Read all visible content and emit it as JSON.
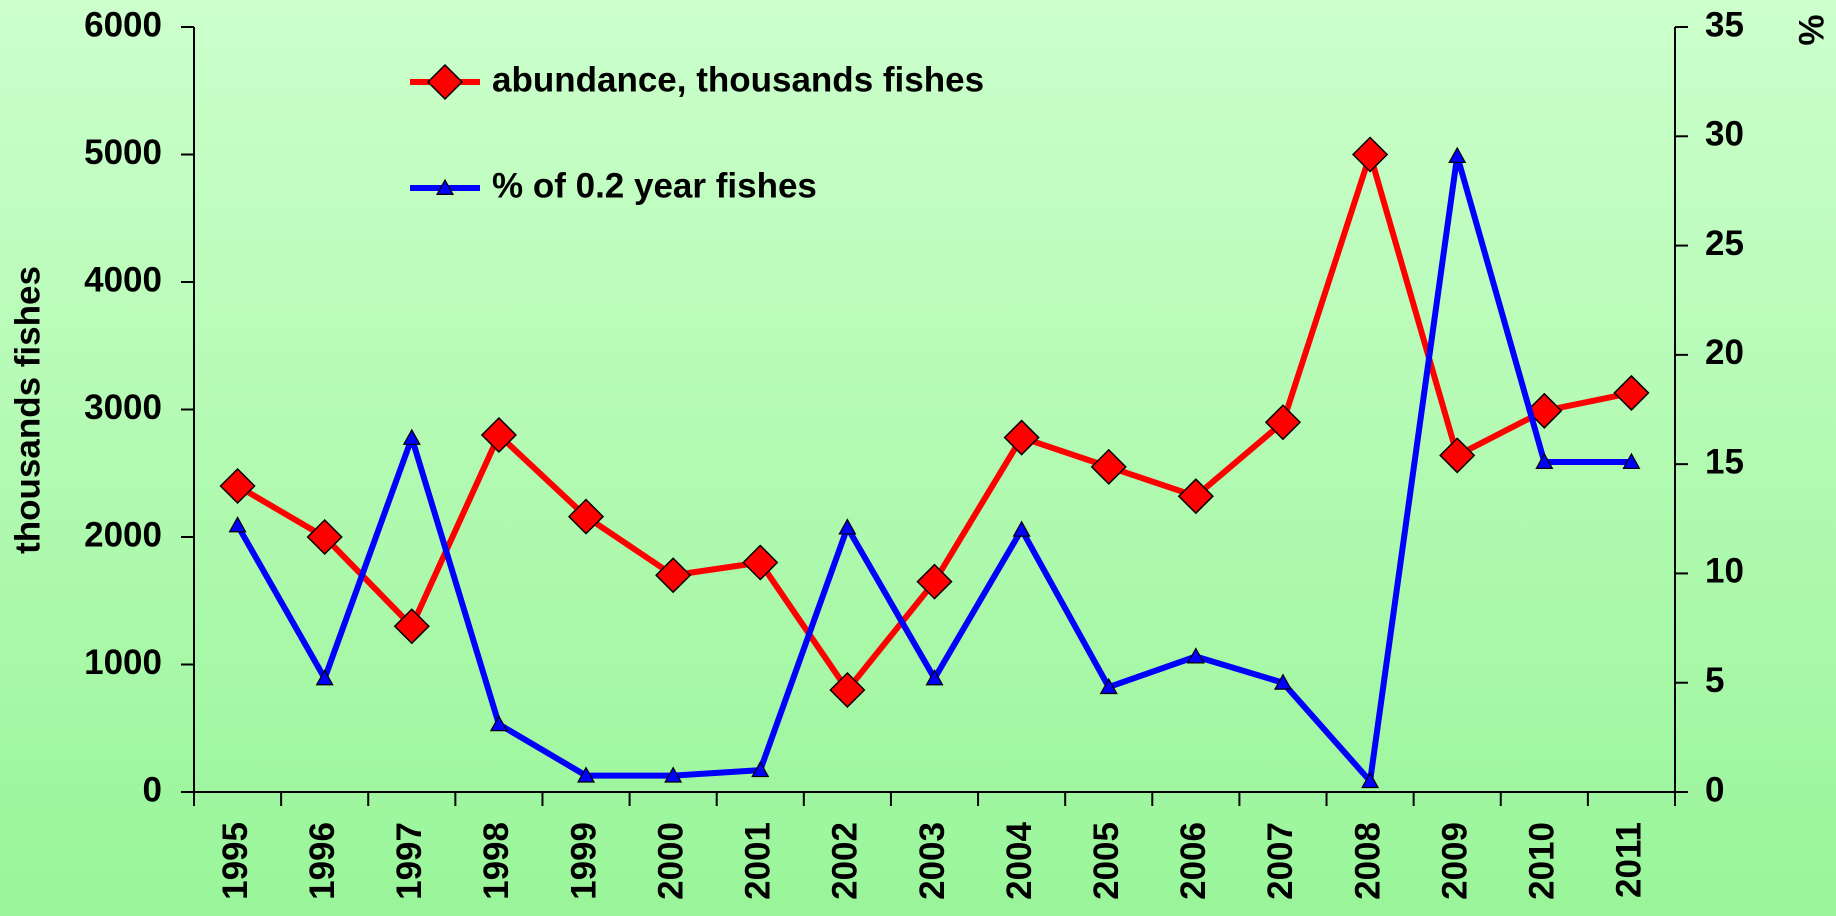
{
  "chart_data": {
    "type": "line",
    "categories": [
      "1995",
      "1996",
      "1997",
      "1998",
      "1999",
      "2000",
      "2001",
      "2002",
      "2003",
      "2004",
      "2005",
      "2006",
      "2007",
      "2008",
      "2009",
      "2010",
      "2011"
    ],
    "series": [
      {
        "name": "abundance, thousands fishes",
        "color": "#ff0000",
        "marker": "diamond",
        "values": [
          2400,
          2000,
          1300,
          2800,
          2160,
          1700,
          1800,
          800,
          1650,
          2780,
          2550,
          2320,
          2900,
          5000,
          2640,
          2990,
          3130
        ]
      },
      {
        "name": "% of 0.2 year fishes",
        "color": "#0000ff",
        "marker": "triangle",
        "axis": "y2",
        "values": [
          12.2,
          5.2,
          16.2,
          3.1,
          0.75,
          0.75,
          1.0,
          12.1,
          5.2,
          12.0,
          4.8,
          6.2,
          5.0,
          0.5,
          29.1,
          15.1,
          15.1
        ]
      }
    ],
    "ylabel": "thousands fishes",
    "y2label": "%",
    "ylim": [
      0,
      6000
    ],
    "yticks": [
      0,
      1000,
      2000,
      3000,
      4000,
      5000,
      6000
    ],
    "y2lim": [
      0,
      35
    ],
    "y2ticks": [
      0,
      5,
      10,
      15,
      20,
      25,
      30,
      35
    ],
    "legend": "top-left",
    "grid": false
  }
}
